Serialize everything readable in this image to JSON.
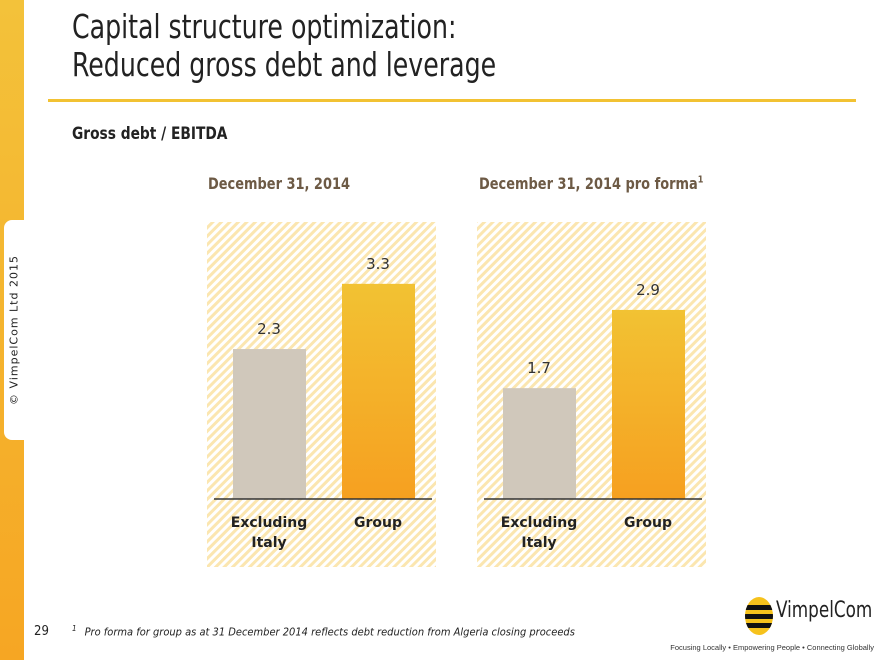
{
  "copyright": "© VimpelCom Ltd 2015",
  "title_line1": "Capital structure optimization:",
  "title_line2": "Reduced gross debt and leverage",
  "subtitle": "Gross debt / EBITDA",
  "footnote_mark": "1",
  "footnote": "Pro forma for group as at 31 December 2014 reflects debt reduction from Algeria closing proceeds",
  "page_number": "29",
  "logo": {
    "name": "VimpelCom",
    "tagline": "Focusing Locally • Empowering People • Connecting Globally"
  },
  "colors": {
    "excluding": "#d0c8bb",
    "group_top": "#f2c233",
    "group_bottom": "#f6a020",
    "title": "#6d5a45"
  },
  "chart_data": [
    {
      "type": "bar",
      "title": "December 31, 2014",
      "title_sup": "",
      "categories": [
        "Excluding Italy",
        "Group"
      ],
      "values": [
        2.3,
        3.3
      ],
      "ylim": [
        0,
        3.3
      ]
    },
    {
      "type": "bar",
      "title": "December 31, 2014 pro forma",
      "title_sup": "1",
      "categories": [
        "Excluding Italy",
        "Group"
      ],
      "values": [
        1.7,
        2.9
      ],
      "ylim": [
        0,
        3.3
      ]
    }
  ]
}
